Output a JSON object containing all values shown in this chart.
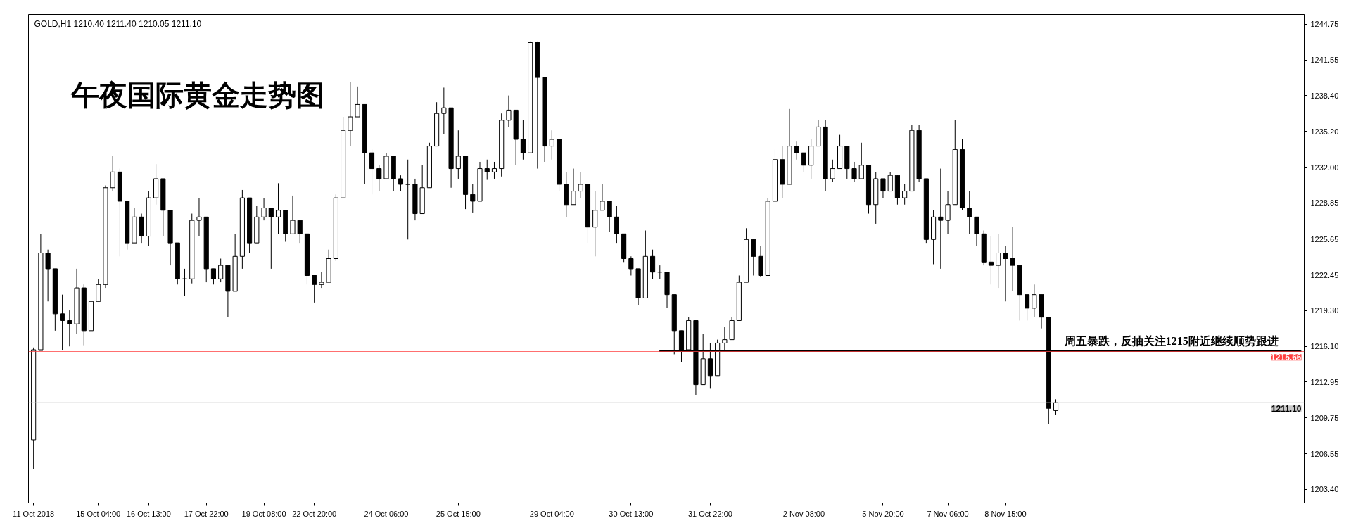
{
  "chart_data": {
    "type": "candlestick",
    "title": "午夜国际黄金走势图",
    "subtitle": "GOLD,H1  1210.40 1211.40 1210.05 1211.10",
    "color": "#000000",
    "categories": [
      "11 Oct 2018",
      null,
      null,
      null,
      null,
      null,
      null,
      null,
      null,
      "15 Oct 04:00",
      null,
      null,
      null,
      null,
      null,
      null,
      "16 Oct 13:00",
      null,
      null,
      null,
      null,
      null,
      null,
      null,
      "17 Oct 22:00",
      null,
      null,
      null,
      null,
      null,
      null,
      null,
      "19 Oct 08:00",
      null,
      null,
      null,
      null,
      null,
      null,
      "22 Oct 20:00",
      null,
      null,
      null,
      null,
      null,
      null,
      null,
      null,
      null,
      "24 Oct 06:00",
      null,
      null,
      null,
      null,
      null,
      null,
      null,
      null,
      null,
      "25 Oct 15:00",
      null,
      null,
      null,
      null,
      null,
      null,
      null,
      null,
      null,
      null,
      null,
      null,
      "29 Oct 04:00",
      null,
      null,
      null,
      null,
      null,
      null,
      null,
      null,
      null,
      null,
      "30 Oct 13:00",
      null,
      null,
      null,
      null,
      null,
      null,
      null,
      null,
      null,
      null,
      "31 Oct 22:00",
      null,
      null,
      null,
      null,
      null,
      null,
      null,
      null,
      null,
      null,
      null,
      null,
      "2 Nov 08:00",
      null,
      null,
      null,
      null,
      null,
      null,
      null,
      null,
      null,
      null,
      "5 Nov 20:00",
      null,
      null,
      null,
      null,
      null,
      null,
      null,
      null,
      "7 Nov 06:00",
      null,
      null,
      null,
      null,
      null,
      null,
      null,
      "8 Nov 15:00",
      null,
      null,
      null,
      null,
      null,
      null,
      null,
      null,
      null,
      null,
      null,
      null,
      null,
      null,
      null,
      null,
      null,
      null,
      null,
      null,
      null,
      null,
      null,
      null,
      null,
      null,
      null,
      null,
      null,
      null,
      null,
      null,
      null,
      null,
      null,
      null,
      null,
      null,
      null,
      null,
      null
    ],
    "ohlc": [
      [
        1207.8,
        1216.0,
        1205.2,
        1215.8
      ],
      [
        1215.8,
        1226.1,
        1215.8,
        1224.4
      ],
      [
        1224.4,
        1224.7,
        1220.1,
        1223.0
      ],
      [
        1223.0,
        1223.0,
        1217.5,
        1219.0
      ],
      [
        1219.0,
        1220.7,
        1215.8,
        1218.4
      ],
      [
        1218.4,
        1219.3,
        1216.1,
        1218.1
      ],
      [
        1218.1,
        1223.0,
        1217.2,
        1221.3
      ],
      [
        1221.3,
        1221.6,
        1216.2,
        1217.5
      ],
      [
        1217.5,
        1220.7,
        1217.2,
        1220.1
      ],
      [
        1220.1,
        1222.1,
        1220.1,
        1221.6
      ],
      [
        1221.6,
        1230.4,
        1221.3,
        1230.2
      ],
      [
        1230.2,
        1233.0,
        1229.9,
        1231.6
      ],
      [
        1231.6,
        1231.9,
        1224.1,
        1229.0
      ],
      [
        1229.0,
        1229.0,
        1224.7,
        1225.3
      ],
      [
        1225.3,
        1228.4,
        1225.3,
        1227.6
      ],
      [
        1227.6,
        1227.9,
        1225.3,
        1225.9
      ],
      [
        1225.9,
        1229.9,
        1225.0,
        1229.3
      ],
      [
        1229.3,
        1232.3,
        1228.7,
        1231.0
      ],
      [
        1231.0,
        1231.0,
        1225.9,
        1228.2
      ],
      [
        1228.2,
        1228.2,
        1223.3,
        1225.3
      ],
      [
        1225.3,
        1225.3,
        1221.6,
        1222.1
      ],
      [
        1222.1,
        1223.0,
        1220.6,
        1222.1
      ],
      [
        1222.1,
        1227.9,
        1221.7,
        1227.3
      ],
      [
        1227.3,
        1229.3,
        1225.9,
        1227.6
      ],
      [
        1227.6,
        1227.6,
        1221.8,
        1223.0
      ],
      [
        1223.0,
        1223.0,
        1221.6,
        1222.1
      ],
      [
        1222.1,
        1223.9,
        1221.8,
        1223.3
      ],
      [
        1223.3,
        1223.3,
        1218.7,
        1221.0
      ],
      [
        1221.0,
        1226.1,
        1221.0,
        1224.1
      ],
      [
        1224.1,
        1230.0,
        1223.0,
        1229.3
      ],
      [
        1229.3,
        1229.3,
        1224.4,
        1225.3
      ],
      [
        1225.3,
        1228.6,
        1225.3,
        1227.6
      ],
      [
        1227.6,
        1229.3,
        1227.3,
        1228.4
      ],
      [
        1228.4,
        1228.4,
        1223.0,
        1227.6
      ],
      [
        1227.6,
        1230.6,
        1226.1,
        1228.2
      ],
      [
        1228.2,
        1228.2,
        1225.4,
        1226.1
      ],
      [
        1226.1,
        1229.5,
        1226.1,
        1227.3
      ],
      [
        1227.3,
        1227.3,
        1225.3,
        1226.1
      ],
      [
        1226.1,
        1226.1,
        1221.6,
        1222.4
      ],
      [
        1222.4,
        1222.4,
        1220.0,
        1221.6
      ],
      [
        1221.6,
        1222.7,
        1221.3,
        1221.8
      ],
      [
        1221.8,
        1224.7,
        1221.8,
        1223.9
      ],
      [
        1223.9,
        1229.6,
        1223.7,
        1229.3
      ],
      [
        1229.3,
        1236.5,
        1229.3,
        1235.3
      ],
      [
        1235.3,
        1239.6,
        1233.9,
        1236.5
      ],
      [
        1236.5,
        1239.2,
        1236.5,
        1237.6
      ],
      [
        1237.6,
        1237.6,
        1230.5,
        1233.3
      ],
      [
        1233.3,
        1233.6,
        1229.6,
        1231.9
      ],
      [
        1231.9,
        1232.2,
        1229.9,
        1231.0
      ],
      [
        1231.0,
        1233.3,
        1231.0,
        1233.0
      ],
      [
        1233.0,
        1233.0,
        1229.9,
        1231.0
      ],
      [
        1231.0,
        1231.3,
        1229.9,
        1230.5
      ],
      [
        1230.5,
        1232.7,
        1225.6,
        1230.5
      ],
      [
        1230.5,
        1231.0,
        1227.3,
        1227.9
      ],
      [
        1227.9,
        1232.2,
        1227.9,
        1230.2
      ],
      [
        1230.2,
        1234.2,
        1230.2,
        1233.9
      ],
      [
        1233.9,
        1237.8,
        1233.9,
        1236.8
      ],
      [
        1236.8,
        1239.1,
        1235.0,
        1237.3
      ],
      [
        1237.3,
        1237.3,
        1230.2,
        1231.9
      ],
      [
        1231.9,
        1235.3,
        1231.0,
        1233.0
      ],
      [
        1233.0,
        1233.0,
        1228.3,
        1229.6
      ],
      [
        1229.6,
        1230.5,
        1228.0,
        1229.0
      ],
      [
        1229.0,
        1232.5,
        1229.0,
        1231.9
      ],
      [
        1231.9,
        1232.7,
        1230.9,
        1231.6
      ],
      [
        1231.6,
        1232.5,
        1231.0,
        1231.9
      ],
      [
        1231.9,
        1236.8,
        1231.2,
        1236.2
      ],
      [
        1236.2,
        1238.4,
        1235.6,
        1237.1
      ],
      [
        1237.1,
        1237.1,
        1232.2,
        1234.5
      ],
      [
        1234.5,
        1236.2,
        1232.7,
        1233.3
      ],
      [
        1233.3,
        1243.2,
        1233.3,
        1243.1
      ],
      [
        1243.1,
        1243.2,
        1231.9,
        1240.0
      ],
      [
        1240.0,
        1240.0,
        1232.5,
        1233.9
      ],
      [
        1233.9,
        1235.3,
        1232.7,
        1234.5
      ],
      [
        1234.5,
        1234.5,
        1229.9,
        1230.5
      ],
      [
        1230.5,
        1231.6,
        1227.6,
        1228.7
      ],
      [
        1228.7,
        1231.9,
        1228.7,
        1229.9
      ],
      [
        1229.9,
        1231.6,
        1229.3,
        1230.5
      ],
      [
        1230.5,
        1230.5,
        1225.3,
        1226.7
      ],
      [
        1226.7,
        1229.9,
        1224.1,
        1228.2
      ],
      [
        1228.2,
        1230.5,
        1228.2,
        1229.0
      ],
      [
        1229.0,
        1229.0,
        1226.3,
        1227.6
      ],
      [
        1227.6,
        1228.6,
        1225.3,
        1226.1
      ],
      [
        1226.1,
        1226.1,
        1223.6,
        1223.9
      ],
      [
        1223.9,
        1224.1,
        1222.4,
        1223.0
      ],
      [
        1223.0,
        1223.0,
        1219.8,
        1220.4
      ],
      [
        1220.4,
        1226.4,
        1220.4,
        1224.1
      ],
      [
        1224.1,
        1224.7,
        1222.1,
        1222.7
      ],
      [
        1222.7,
        1223.3,
        1222.1,
        1222.7
      ],
      [
        1222.7,
        1222.7,
        1219.5,
        1220.7
      ],
      [
        1220.7,
        1220.7,
        1215.4,
        1217.5
      ],
      [
        1217.5,
        1217.5,
        1214.7,
        1215.8
      ],
      [
        1215.8,
        1218.7,
        1215.8,
        1218.4
      ],
      [
        1218.4,
        1218.4,
        1211.8,
        1212.7
      ],
      [
        1212.7,
        1217.2,
        1212.7,
        1215.0
      ],
      [
        1215.0,
        1216.4,
        1212.4,
        1213.5
      ],
      [
        1213.5,
        1216.7,
        1213.5,
        1216.4
      ],
      [
        1216.4,
        1217.8,
        1215.8,
        1216.7
      ],
      [
        1216.7,
        1218.7,
        1216.7,
        1218.4
      ],
      [
        1218.4,
        1222.4,
        1218.4,
        1221.8
      ],
      [
        1221.8,
        1226.6,
        1221.8,
        1225.6
      ],
      [
        1225.6,
        1225.6,
        1222.4,
        1224.1
      ],
      [
        1224.1,
        1225.0,
        1222.3,
        1222.4
      ],
      [
        1222.4,
        1229.3,
        1222.4,
        1229.0
      ],
      [
        1229.0,
        1233.6,
        1229.0,
        1232.7
      ],
      [
        1232.7,
        1233.9,
        1229.3,
        1230.5
      ],
      [
        1230.5,
        1237.2,
        1230.5,
        1233.9
      ],
      [
        1233.9,
        1234.3,
        1232.7,
        1233.3
      ],
      [
        1233.3,
        1233.3,
        1231.6,
        1232.2
      ],
      [
        1232.2,
        1234.5,
        1231.0,
        1233.9
      ],
      [
        1233.9,
        1236.2,
        1233.9,
        1235.6
      ],
      [
        1235.6,
        1236.2,
        1229.9,
        1231.0
      ],
      [
        1231.0,
        1232.7,
        1230.7,
        1231.9
      ],
      [
        1231.9,
        1234.9,
        1231.9,
        1233.9
      ],
      [
        1233.9,
        1233.9,
        1231.0,
        1231.9
      ],
      [
        1231.9,
        1232.5,
        1230.7,
        1231.0
      ],
      [
        1231.0,
        1234.2,
        1231.0,
        1232.2
      ],
      [
        1232.2,
        1232.2,
        1227.9,
        1228.7
      ],
      [
        1228.7,
        1231.6,
        1227.0,
        1231.0
      ],
      [
        1231.0,
        1231.0,
        1229.3,
        1229.9
      ],
      [
        1229.9,
        1231.6,
        1229.9,
        1231.3
      ],
      [
        1231.3,
        1231.3,
        1228.7,
        1229.3
      ],
      [
        1229.3,
        1230.5,
        1228.7,
        1229.9
      ],
      [
        1229.9,
        1235.8,
        1229.9,
        1235.3
      ],
      [
        1235.3,
        1235.8,
        1230.7,
        1231.0
      ],
      [
        1231.0,
        1231.0,
        1225.3,
        1225.6
      ],
      [
        1225.6,
        1228.2,
        1223.4,
        1227.6
      ],
      [
        1227.6,
        1231.9,
        1223.0,
        1227.3
      ],
      [
        1227.3,
        1229.9,
        1226.1,
        1228.7
      ],
      [
        1228.7,
        1236.2,
        1228.7,
        1233.6
      ],
      [
        1233.6,
        1234.5,
        1228.2,
        1228.4
      ],
      [
        1228.4,
        1229.9,
        1226.1,
        1227.6
      ],
      [
        1227.6,
        1227.6,
        1225.0,
        1226.1
      ],
      [
        1226.1,
        1226.4,
        1223.3,
        1223.6
      ],
      [
        1223.6,
        1225.9,
        1221.6,
        1223.3
      ],
      [
        1223.3,
        1226.1,
        1221.3,
        1224.4
      ],
      [
        1224.4,
        1225.0,
        1220.1,
        1223.9
      ],
      [
        1223.9,
        1226.7,
        1221.0,
        1223.3
      ],
      [
        1223.3,
        1223.3,
        1218.4,
        1220.7
      ],
      [
        1220.7,
        1220.7,
        1218.4,
        1219.5
      ],
      [
        1219.5,
        1221.6,
        1218.7,
        1220.7
      ],
      [
        1220.7,
        1220.7,
        1217.7,
        1218.7
      ],
      [
        1218.7,
        1218.7,
        1209.2,
        1210.6
      ],
      [
        1210.4,
        1211.4,
        1210.05,
        1211.1
      ],
      null,
      null,
      null,
      null,
      null,
      null,
      null,
      null,
      null,
      null,
      null,
      null,
      null,
      null,
      null,
      null,
      null,
      null,
      null,
      null,
      null,
      null,
      null,
      null,
      null,
      null,
      null,
      null,
      null,
      null,
      null,
      null,
      null,
      null
    ],
    "series": [
      {
        "type": "line",
        "color": "#000000",
        "values": [
          null,
          null,
          null,
          null,
          null,
          null,
          null,
          null,
          null,
          null,
          null,
          null,
          null,
          null,
          null,
          null,
          null,
          null,
          null,
          null,
          null,
          null,
          null,
          null,
          null,
          null,
          null,
          null,
          null,
          null,
          null,
          null,
          null,
          null,
          null,
          null,
          null,
          null,
          null,
          null,
          null,
          null,
          null,
          null,
          null,
          null,
          null,
          null,
          null,
          null,
          null,
          null,
          null,
          null,
          null,
          null,
          null,
          null,
          null,
          null,
          null,
          null,
          null,
          null,
          null,
          null,
          null,
          null,
          null,
          null,
          null,
          null,
          null,
          null,
          null,
          null,
          null,
          null,
          null,
          null,
          null,
          null,
          null,
          null,
          null,
          null,
          null,
          1215.7,
          1215.7,
          1215.7,
          1215.7,
          1215.7,
          1215.7,
          1215.7,
          1215.7,
          1215.7,
          1215.7,
          1215.7,
          1215.7,
          1215.7,
          1215.7,
          1215.7,
          1215.7,
          1215.7,
          1215.7,
          1215.7,
          1215.7,
          1215.7,
          1215.7,
          1215.7,
          1215.7,
          1215.7,
          1215.7,
          1215.7,
          1215.7,
          1215.7,
          1215.7,
          1215.7,
          1215.7,
          1215.7,
          1215.7,
          1215.7,
          1215.7,
          1215.7,
          1215.7,
          1215.7,
          1215.7,
          1215.7,
          1215.7,
          1215.7,
          1215.7,
          1215.7,
          1215.7,
          1215.7,
          1215.7,
          1215.7,
          1215.7,
          1215.7,
          1215.7,
          1215.7,
          1215.7,
          1215.7,
          1215.7,
          1215.7,
          1215.7,
          1215.7,
          1215.7,
          1215.7,
          1215.7,
          1215.7,
          1215.7,
          1215.7,
          1215.7,
          1215.7,
          1215.7,
          1215.7,
          1215.7,
          1215.7,
          1215.7,
          1215.7,
          1215.7,
          1215.7,
          1215.7,
          1215.7,
          1215.7,
          1215.7,
          1215.7,
          1215.7,
          1215.7,
          1215.7,
          1215.7,
          1215.7,
          1215.7,
          1215.7,
          1215.7,
          1215.7,
          1215.7
        ]
      }
    ],
    "ylim": [
      1202.2,
      1245.6
    ],
    "yticks": [
      1244.75,
      1241.55,
      {
        "value": 1238.4,
        "label": "1238.40"
      },
      {
        "value": 1235.2,
        "label": "1235.20"
      },
      {
        "value": 1232.0,
        "label": "1232.00"
      },
      1228.85,
      1225.65,
      1222.45,
      {
        "value": 1219.3,
        "label": "1219.30"
      },
      {
        "value": 1216.1,
        "label": "1216.10"
      },
      1212.95,
      1209.75,
      1206.55,
      {
        "value": 1203.4,
        "label": "1203.40"
      }
    ],
    "ref_lines": [
      {
        "axis": "y",
        "value": 1215.66,
        "label": "1215.66",
        "color": "#ff4040"
      },
      {
        "axis": "y",
        "value": 1211.1,
        "label": "1211.10",
        "color": "#c8c8c8"
      }
    ],
    "annotations": [
      "周五暴跌，反抽关注1215附近继续顺势跟进"
    ]
  }
}
